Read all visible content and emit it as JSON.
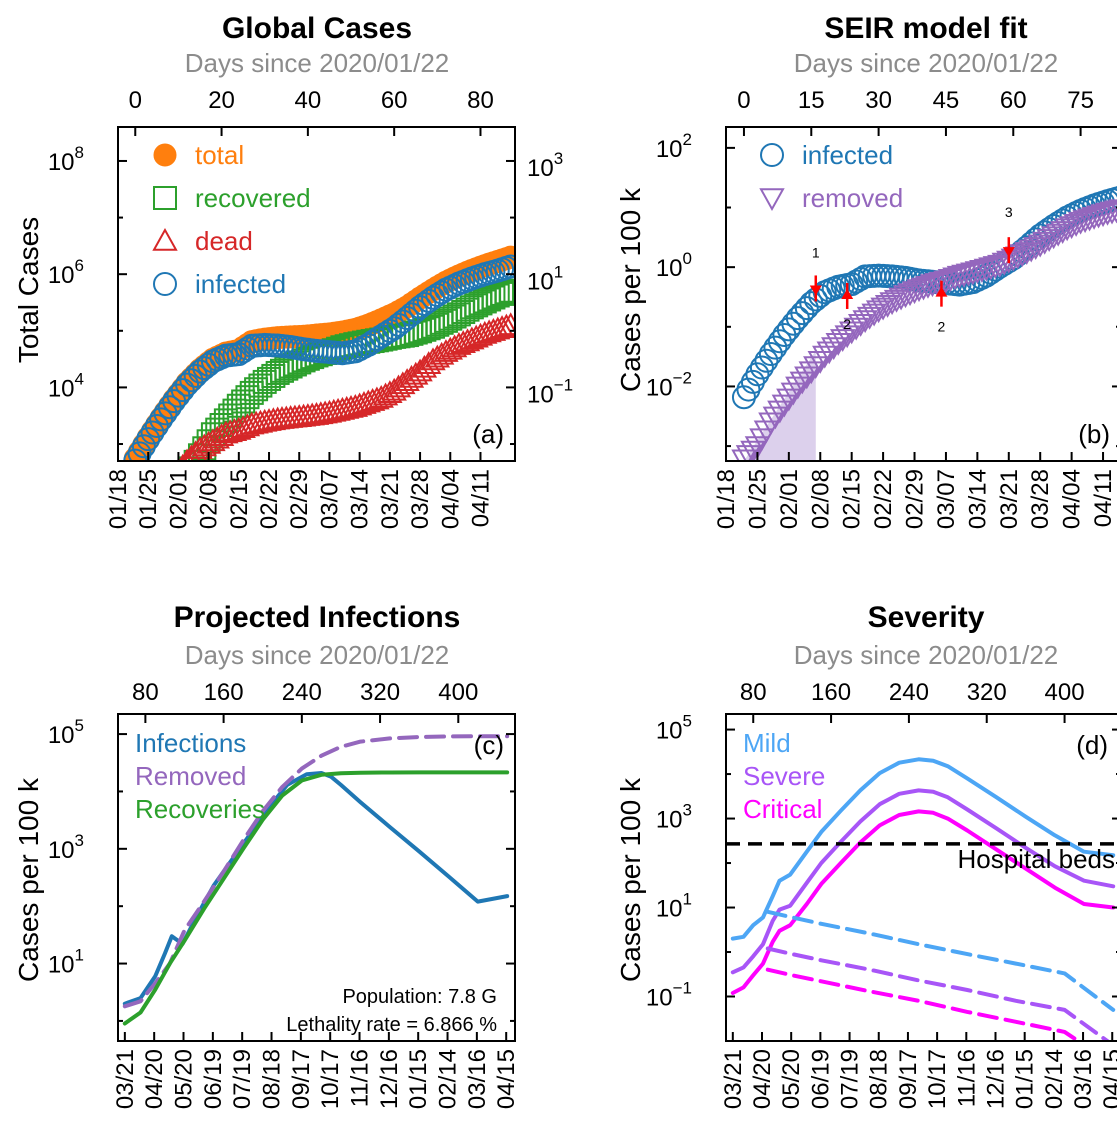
{
  "colors": {
    "orange": "#ff7f0e",
    "green": "#2ca02c",
    "red": "#d62728",
    "blue": "#1f77b4",
    "purple": "#9467bd",
    "lightblue": "#4da6f5",
    "lightpurple": "#a855f7",
    "magenta": "#ff00ff",
    "shade": "#dcd0ec",
    "gray": "#8c8c8c"
  },
  "chart_data": [
    {
      "id": "a",
      "type": "scatter",
      "title": "Global Cases",
      "top_axis_label": "Days since 2020/01/22",
      "ylabel": "Total Cases",
      "panel_label": "(a)",
      "top_ticks": [
        "0",
        "20",
        "40",
        "60",
        "80"
      ],
      "date_ticks": [
        "01/18",
        "01/25",
        "02/01",
        "02/08",
        "02/15",
        "02/22",
        "02/29",
        "03/07",
        "03/14",
        "03/21",
        "03/28",
        "04/04",
        "04/11"
      ],
      "y_ticks_left": [
        {
          "base": "10",
          "exp": "4"
        },
        {
          "base": "10",
          "exp": "6"
        },
        {
          "base": "10",
          "exp": "8"
        }
      ],
      "y_ticks_right": [
        {
          "base": "10",
          "exp": "−1"
        },
        {
          "base": "10",
          "exp": "1"
        },
        {
          "base": "10",
          "exp": "3"
        }
      ],
      "scale": "log",
      "legend": "top-left",
      "series": [
        {
          "name": "total",
          "marker": "filled-circle",
          "color": "orange",
          "x": [
            0,
            3,
            6,
            9,
            12,
            15,
            18,
            21,
            24,
            27,
            30,
            33,
            36,
            39,
            42,
            45,
            48,
            51,
            54,
            57,
            60,
            63,
            66,
            69,
            72,
            75,
            78,
            81,
            84,
            87
          ],
          "y": [
            555,
            1300,
            2900,
            6100,
            12000,
            20600,
            31500,
            40500,
            45200,
            64500,
            71300,
            75600,
            78000,
            80200,
            84100,
            88400,
            95300,
            105800,
            125800,
            156400,
            198200,
            265000,
            379000,
            532000,
            725000,
            935000,
            1170000,
            1420000,
            1680000,
            2000000
          ]
        },
        {
          "name": "recovered",
          "marker": "open-square",
          "color": "green",
          "x": [
            0,
            3,
            6,
            9,
            12,
            15,
            18,
            21,
            24,
            27,
            30,
            33,
            36,
            39,
            42,
            45,
            48,
            51,
            54,
            57,
            60,
            63,
            66,
            69,
            72,
            75,
            78,
            81,
            84,
            87
          ],
          "y": [
            28,
            39,
            60,
            126,
            284,
            632,
            1487,
            2616,
            4740,
            8000,
            12500,
            18000,
            23400,
            30000,
            36700,
            42700,
            51200,
            58000,
            64000,
            70000,
            78000,
            84000,
            98000,
            118000,
            150000,
            195000,
            260000,
            330000,
            420000,
            510000
          ]
        },
        {
          "name": "dead",
          "marker": "open-triangle",
          "color": "red",
          "x": [
            0,
            3,
            6,
            9,
            12,
            15,
            18,
            21,
            24,
            27,
            30,
            33,
            36,
            39,
            42,
            45,
            48,
            51,
            54,
            57,
            60,
            63,
            66,
            69,
            72,
            75,
            78,
            81,
            84,
            87
          ],
          "y": [
            17,
            41,
            132,
            259,
            490,
            813,
            1116,
            1526,
            1775,
            2200,
            2460,
            2700,
            2870,
            3040,
            3250,
            3560,
            4000,
            4500,
            5400,
            6500,
            8700,
            12900,
            19000,
            30000,
            42000,
            56000,
            70000,
            88000,
            105000,
            125000
          ]
        },
        {
          "name": "infected",
          "marker": "open-circle",
          "color": "blue",
          "x": [
            0,
            3,
            6,
            9,
            12,
            15,
            18,
            21,
            24,
            27,
            30,
            33,
            36,
            39,
            42,
            45,
            48,
            51,
            54,
            57,
            60,
            63,
            66,
            69,
            72,
            75,
            78,
            81,
            84,
            87
          ],
          "y": [
            510,
            1220,
            2720,
            5720,
            11200,
            19100,
            28900,
            36400,
            38700,
            54300,
            56300,
            54900,
            51700,
            47200,
            44200,
            42100,
            40100,
            43300,
            56400,
            79900,
            111000,
            168000,
            262000,
            384000,
            533000,
            684000,
            840000,
            1000000,
            1155000,
            1365000
          ]
        }
      ]
    },
    {
      "id": "b",
      "type": "scatter",
      "title": "SEIR model fit",
      "top_axis_label": "Days since 2020/01/22",
      "ylabel": "Cases per 100 k",
      "panel_label": "(b)",
      "top_ticks": [
        "0",
        "15",
        "30",
        "45",
        "60",
        "75"
      ],
      "date_ticks": [
        "01/18",
        "01/25",
        "02/01",
        "02/08",
        "02/15",
        "02/22",
        "02/29",
        "03/07",
        "03/14",
        "03/21",
        "03/28",
        "04/04",
        "04/11"
      ],
      "y_ticks_left": [
        {
          "base": "10",
          "exp": "−2"
        },
        {
          "base": "10",
          "exp": "0"
        },
        {
          "base": "10",
          "exp": "2"
        }
      ],
      "scale": "log",
      "legend": "top-left",
      "shaded_days": [
        0,
        16
      ],
      "series": [
        {
          "name": "infected",
          "marker": "open-circle",
          "color": "blue",
          "x": [
            0,
            3,
            6,
            9,
            12,
            15,
            18,
            21,
            24,
            27,
            30,
            33,
            36,
            39,
            42,
            45,
            48,
            51,
            54,
            57,
            60,
            63,
            66,
            69,
            72,
            75,
            78,
            81,
            84
          ],
          "y": [
            0.0066,
            0.016,
            0.035,
            0.073,
            0.14,
            0.25,
            0.38,
            0.47,
            0.52,
            0.7,
            0.72,
            0.7,
            0.66,
            0.6,
            0.57,
            0.54,
            0.51,
            0.56,
            0.72,
            1.02,
            1.4,
            2.15,
            3.4,
            4.9,
            6.8,
            8.8,
            10.8,
            12.8,
            14.8
          ]
        },
        {
          "name": "removed",
          "marker": "open-triangle-down",
          "color": "purple",
          "x": [
            0,
            3,
            6,
            9,
            12,
            15,
            18,
            21,
            24,
            27,
            30,
            33,
            36,
            39,
            42,
            45,
            48,
            51,
            54,
            57,
            60,
            63,
            66,
            69,
            72,
            75,
            78,
            81,
            84
          ],
          "y": [
            0.0006,
            0.001,
            0.0025,
            0.005,
            0.01,
            0.018,
            0.033,
            0.054,
            0.084,
            0.13,
            0.19,
            0.26,
            0.34,
            0.43,
            0.52,
            0.6,
            0.72,
            0.82,
            0.95,
            1.1,
            1.4,
            1.8,
            2.4,
            3.3,
            4.5,
            5.8,
            7.0,
            8.2,
            9.4
          ]
        }
      ],
      "annotations": [
        {
          "text": "1",
          "day": 16
        },
        {
          "text": "2",
          "day": 23
        },
        {
          "text": "2",
          "day": 44
        },
        {
          "text": "3",
          "day": 59
        }
      ]
    },
    {
      "id": "c",
      "type": "line",
      "title": "Projected Infections",
      "top_axis_label": "Days since 2020/01/22",
      "ylabel": "Cases per 100 k",
      "panel_label": "(c)",
      "top_ticks": [
        "80",
        "160",
        "240",
        "320",
        "400"
      ],
      "date_ticks": [
        "03/21",
        "04/20",
        "05/20",
        "06/19",
        "07/19",
        "08/18",
        "09/17",
        "10/17",
        "11/16",
        "12/16",
        "01/15",
        "02/14",
        "03/16",
        "04/15"
      ],
      "y_ticks_left": [
        {
          "base": "10",
          "exp": "1"
        },
        {
          "base": "10",
          "exp": "3"
        },
        {
          "base": "10",
          "exp": "5"
        }
      ],
      "scale": "log",
      "legend": "top-left",
      "notes": [
        "Population: 7.8 G",
        "Lethality rate = 6.866 %"
      ],
      "series": [
        {
          "name": "Infections",
          "style": "solid",
          "color": "blue",
          "x": [
            59,
            75,
            90,
            100,
            107,
            118,
            135,
            150,
            170,
            190,
            210,
            225,
            245,
            260,
            270,
            280,
            300,
            330,
            360,
            390,
            420,
            450
          ],
          "y": [
            2,
            2.5,
            6,
            15,
            30,
            22,
            80,
            230,
            700,
            2100,
            6300,
            13000,
            20000,
            21000,
            18000,
            13000,
            6500,
            2400,
            900,
            330,
            120,
            150
          ]
        },
        {
          "name": "Removed",
          "style": "dashed",
          "color": "purple",
          "x": [
            59,
            75,
            90,
            105,
            120,
            140,
            160,
            180,
            200,
            220,
            240,
            260,
            280,
            300,
            330,
            360,
            390,
            420,
            450
          ],
          "y": [
            1.8,
            2.2,
            4.5,
            10,
            38,
            120,
            400,
            1400,
            4500,
            12000,
            25000,
            42000,
            60000,
            74000,
            84000,
            89000,
            91000,
            92000,
            92000
          ]
        },
        {
          "name": "Recoveries",
          "style": "solid",
          "color": "green",
          "x": [
            59,
            75,
            90,
            105,
            120,
            140,
            160,
            180,
            200,
            220,
            240,
            260,
            280,
            300,
            330,
            360,
            390,
            420,
            450
          ],
          "y": [
            0.9,
            1.4,
            3.5,
            10,
            25,
            90,
            300,
            1000,
            3200,
            8500,
            15500,
            19500,
            20800,
            21200,
            21400,
            21500,
            21500,
            21500,
            21500
          ]
        }
      ]
    },
    {
      "id": "d",
      "type": "line",
      "title": "Severity",
      "top_axis_label": "Days since 2020/01/22",
      "ylabel": "Cases per 100 k",
      "panel_label": "(d)",
      "top_ticks": [
        "80",
        "160",
        "240",
        "320",
        "400"
      ],
      "date_ticks": [
        "03/21",
        "04/20",
        "05/20",
        "06/19",
        "07/19",
        "08/18",
        "09/17",
        "10/17",
        "11/16",
        "12/16",
        "01/15",
        "02/14",
        "03/16",
        "04/15"
      ],
      "y_ticks_left": [
        {
          "base": "10",
          "exp": "−1"
        },
        {
          "base": "10",
          "exp": "1"
        },
        {
          "base": "10",
          "exp": "3"
        },
        {
          "base": "10",
          "exp": "5"
        }
      ],
      "scale": "log",
      "legend": "top-left",
      "hline": {
        "label": "Hospital beds",
        "value": 270
      },
      "series": [
        {
          "name": "Mild",
          "style": "solid",
          "color": "lightblue",
          "x": [
            59,
            70,
            80,
            90,
            100,
            107,
            118,
            135,
            150,
            170,
            190,
            210,
            230,
            250,
            265,
            280,
            300,
            330,
            360,
            390,
            420,
            450
          ],
          "y": [
            2,
            2.2,
            4,
            6,
            18,
            40,
            55,
            180,
            500,
            1500,
            4300,
            10500,
            18000,
            21500,
            20000,
            15000,
            8000,
            3000,
            1100,
            420,
            180,
            150
          ]
        },
        {
          "name": "Severe",
          "style": "solid",
          "color": "lightpurple",
          "x": [
            59,
            70,
            80,
            90,
            100,
            107,
            118,
            135,
            150,
            170,
            190,
            210,
            230,
            250,
            265,
            280,
            300,
            330,
            360,
            390,
            420,
            450
          ],
          "y": [
            0.35,
            0.45,
            0.8,
            1.5,
            5,
            9,
            11,
            36,
            100,
            300,
            860,
            2100,
            3600,
            4300,
            4000,
            3000,
            1600,
            600,
            220,
            85,
            40,
            30
          ]
        },
        {
          "name": "Critical",
          "style": "solid",
          "color": "magenta",
          "x": [
            59,
            70,
            80,
            90,
            100,
            107,
            118,
            135,
            150,
            170,
            190,
            210,
            230,
            250,
            265,
            280,
            300,
            330,
            360,
            390,
            420,
            450
          ],
          "y": [
            0.12,
            0.16,
            0.3,
            0.55,
            1.7,
            3,
            4,
            12,
            34,
            100,
            290,
            700,
            1200,
            1450,
            1350,
            1000,
            540,
            200,
            75,
            28,
            12,
            10
          ]
        },
        {
          "name": "Mild",
          "style": "dashed",
          "color": "lightblue",
          "x": [
            95,
            120,
            150,
            200,
            250,
            300,
            350,
            400,
            450
          ],
          "y": [
            8,
            6,
            4.3,
            2.6,
            1.5,
            0.9,
            0.55,
            0.33,
            0.05
          ]
        },
        {
          "name": "Severe",
          "style": "dashed",
          "color": "lightpurple",
          "x": [
            95,
            120,
            150,
            200,
            250,
            300,
            350,
            400,
            450
          ],
          "y": [
            1.2,
            0.9,
            0.65,
            0.4,
            0.23,
            0.14,
            0.08,
            0.05,
            0.008
          ]
        },
        {
          "name": "Critical",
          "style": "dashed",
          "color": "magenta",
          "x": [
            95,
            120,
            150,
            200,
            250,
            300,
            350,
            400,
            450
          ],
          "y": [
            0.4,
            0.3,
            0.22,
            0.13,
            0.08,
            0.045,
            0.027,
            0.016,
            0.003
          ]
        }
      ]
    }
  ]
}
